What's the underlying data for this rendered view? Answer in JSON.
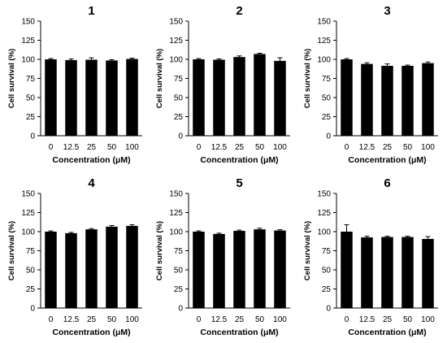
{
  "figure": {
    "bar_color": "#000000",
    "background": "#ffffff"
  },
  "chart_data": [
    {
      "type": "bar",
      "title": "1",
      "categories": [
        "0",
        "12.5",
        "25",
        "50",
        "100"
      ],
      "values": [
        100,
        99,
        99.5,
        98.5,
        100.5
      ],
      "errors": [
        1,
        1.5,
        2.5,
        1,
        1
      ],
      "xlabel": "Concentration (μM)",
      "ylabel": "Cell survival (%)",
      "ylim": [
        0,
        150
      ],
      "yticks": [
        0,
        25,
        50,
        75,
        100,
        125,
        150
      ],
      "grid": false
    },
    {
      "type": "bar",
      "title": "2",
      "categories": [
        "0",
        "12.5",
        "25",
        "50",
        "100"
      ],
      "values": [
        100,
        99.5,
        103,
        107,
        98
      ],
      "errors": [
        1,
        1,
        1.5,
        1,
        4
      ],
      "xlabel": "Concentration (μM)",
      "ylabel": "Cell survival (%)",
      "ylim": [
        0,
        150
      ],
      "yticks": [
        0,
        25,
        50,
        75,
        100,
        125,
        150
      ],
      "grid": false
    },
    {
      "type": "bar",
      "title": "3",
      "categories": [
        "0",
        "12.5",
        "25",
        "50",
        "100"
      ],
      "values": [
        100,
        94,
        91.5,
        91.5,
        95
      ],
      "errors": [
        1,
        1.5,
        2.5,
        1,
        1.5
      ],
      "xlabel": "Concentration (μM)",
      "ylabel": "Cell survival (%)",
      "ylim": [
        0,
        150
      ],
      "yticks": [
        0,
        25,
        50,
        75,
        100,
        125,
        150
      ],
      "grid": false
    },
    {
      "type": "bar",
      "title": "4",
      "categories": [
        "0",
        "12.5",
        "25",
        "50",
        "100"
      ],
      "values": [
        100,
        98,
        103,
        106.5,
        107.5
      ],
      "errors": [
        1,
        1,
        1,
        1.5,
        1.5
      ],
      "xlabel": "Concentration (μM)",
      "ylabel": "Cell survival (%)",
      "ylim": [
        0,
        150
      ],
      "yticks": [
        0,
        25,
        50,
        75,
        100,
        125,
        150
      ],
      "grid": false
    },
    {
      "type": "bar",
      "title": "5",
      "categories": [
        "0",
        "12.5",
        "25",
        "50",
        "100"
      ],
      "values": [
        100,
        97,
        101,
        103,
        101.5
      ],
      "errors": [
        1,
        1,
        1,
        1.5,
        1
      ],
      "xlabel": "Concentration (μM)",
      "ylabel": "Cell survival (%)",
      "ylim": [
        0,
        150
      ],
      "yticks": [
        0,
        25,
        50,
        75,
        100,
        125,
        150
      ],
      "grid": false
    },
    {
      "type": "bar",
      "title": "6",
      "categories": [
        "0",
        "12.5",
        "25",
        "50",
        "100"
      ],
      "values": [
        100,
        92.5,
        93,
        93,
        90.5
      ],
      "errors": [
        9,
        1.5,
        1,
        1,
        3
      ],
      "xlabel": "Concentration (μM)",
      "ylabel": "Cell survival (%)",
      "ylim": [
        0,
        150
      ],
      "yticks": [
        0,
        25,
        50,
        75,
        100,
        125,
        150
      ],
      "grid": false
    }
  ]
}
